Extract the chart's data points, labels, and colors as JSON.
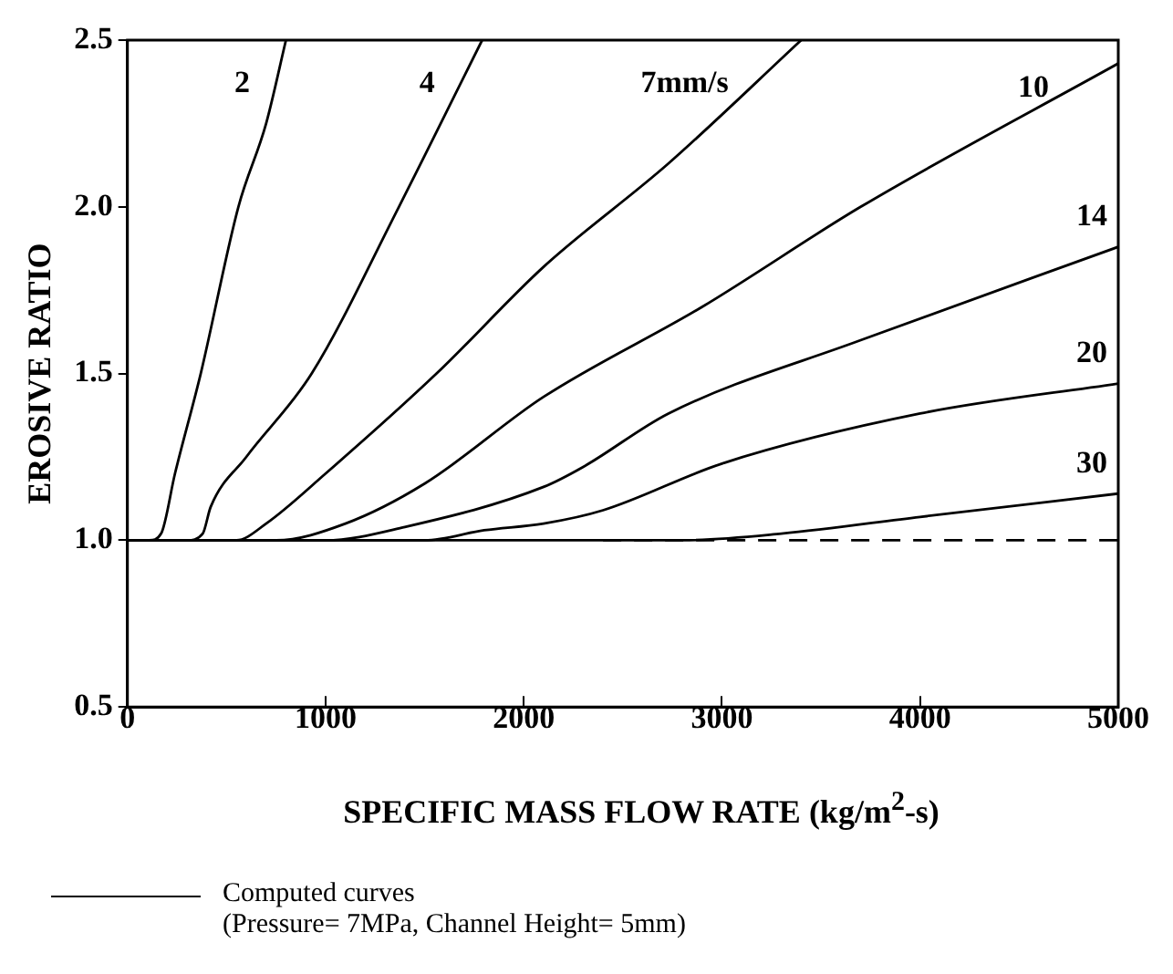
{
  "chart_data": {
    "type": "line",
    "xlabel": "SPECIFIC MASS FLOW RATE (kg/m$^{2}$-s)",
    "ylabel": "EROSIVE RATIO",
    "xlim": [
      0,
      5000
    ],
    "xticks": [
      0,
      1000,
      2000,
      3000,
      4000,
      5000
    ],
    "ylim": [
      0.5,
      2.5
    ],
    "yticks": [
      0.5,
      {
        "value": 1,
        "label": "1.0"
      },
      1.5,
      {
        "value": 2,
        "label": "2.0"
      },
      2.5
    ],
    "grid": false,
    "marker": "none",
    "line_style": "solid",
    "series": [
      {
        "name": "2",
        "color": "#000000",
        "x": [
          0,
          110,
          170,
          240,
          370,
          560,
          700,
          800
        ],
        "values": [
          1,
          1,
          1.02,
          1.2,
          1.5,
          2.0,
          2.25,
          2.5
        ]
      },
      {
        "name": "4",
        "color": "#000000",
        "x": [
          0,
          300,
          380,
          420,
          600,
          930,
          1370,
          1790
        ],
        "values": [
          1,
          1,
          1.02,
          1.1,
          1.25,
          1.5,
          2.0,
          2.5
        ]
      },
      {
        "name": "7mm/s",
        "color": "#000000",
        "x": [
          0,
          550,
          700,
          1000,
          1560,
          2100,
          2730,
          3400
        ],
        "values": [
          1,
          1,
          1.05,
          1.2,
          1.5,
          1.82,
          2.13,
          2.5
        ]
      },
      {
        "name": "10",
        "color": "#000000",
        "x": [
          0,
          750,
          1100,
          1500,
          2100,
          2900,
          3700,
          5000
        ],
        "values": [
          1,
          1,
          1.05,
          1.17,
          1.43,
          1.7,
          2.0,
          2.43
        ]
      },
      {
        "name": "14",
        "color": "#000000",
        "x": [
          0,
          1000,
          1400,
          2100,
          2300,
          2730,
          3700,
          5000
        ],
        "values": [
          1,
          1,
          1.04,
          1.16,
          1.22,
          1.38,
          1.6,
          1.88
        ]
      },
      {
        "name": "20",
        "color": "#000000",
        "x": [
          0,
          1500,
          1800,
          2100,
          2400,
          3000,
          4000,
          5000
        ],
        "values": [
          1,
          1,
          1.03,
          1.05,
          1.09,
          1.23,
          1.38,
          1.47
        ]
      },
      {
        "name": "30",
        "color": "#000000",
        "x": [
          0,
          2800,
          3300,
          4000,
          5000
        ],
        "values": [
          1,
          1,
          1.02,
          1.07,
          1.14
        ]
      },
      {
        "color": "#000000",
        "line_style": "dashed",
        "x": [
          2400,
          5000
        ],
        "values": [
          1,
          1
        ]
      }
    ],
    "annotations": [
      "Computed curves",
      "(Pressure= 7MPa, Channel Height= 5mm)"
    ]
  }
}
